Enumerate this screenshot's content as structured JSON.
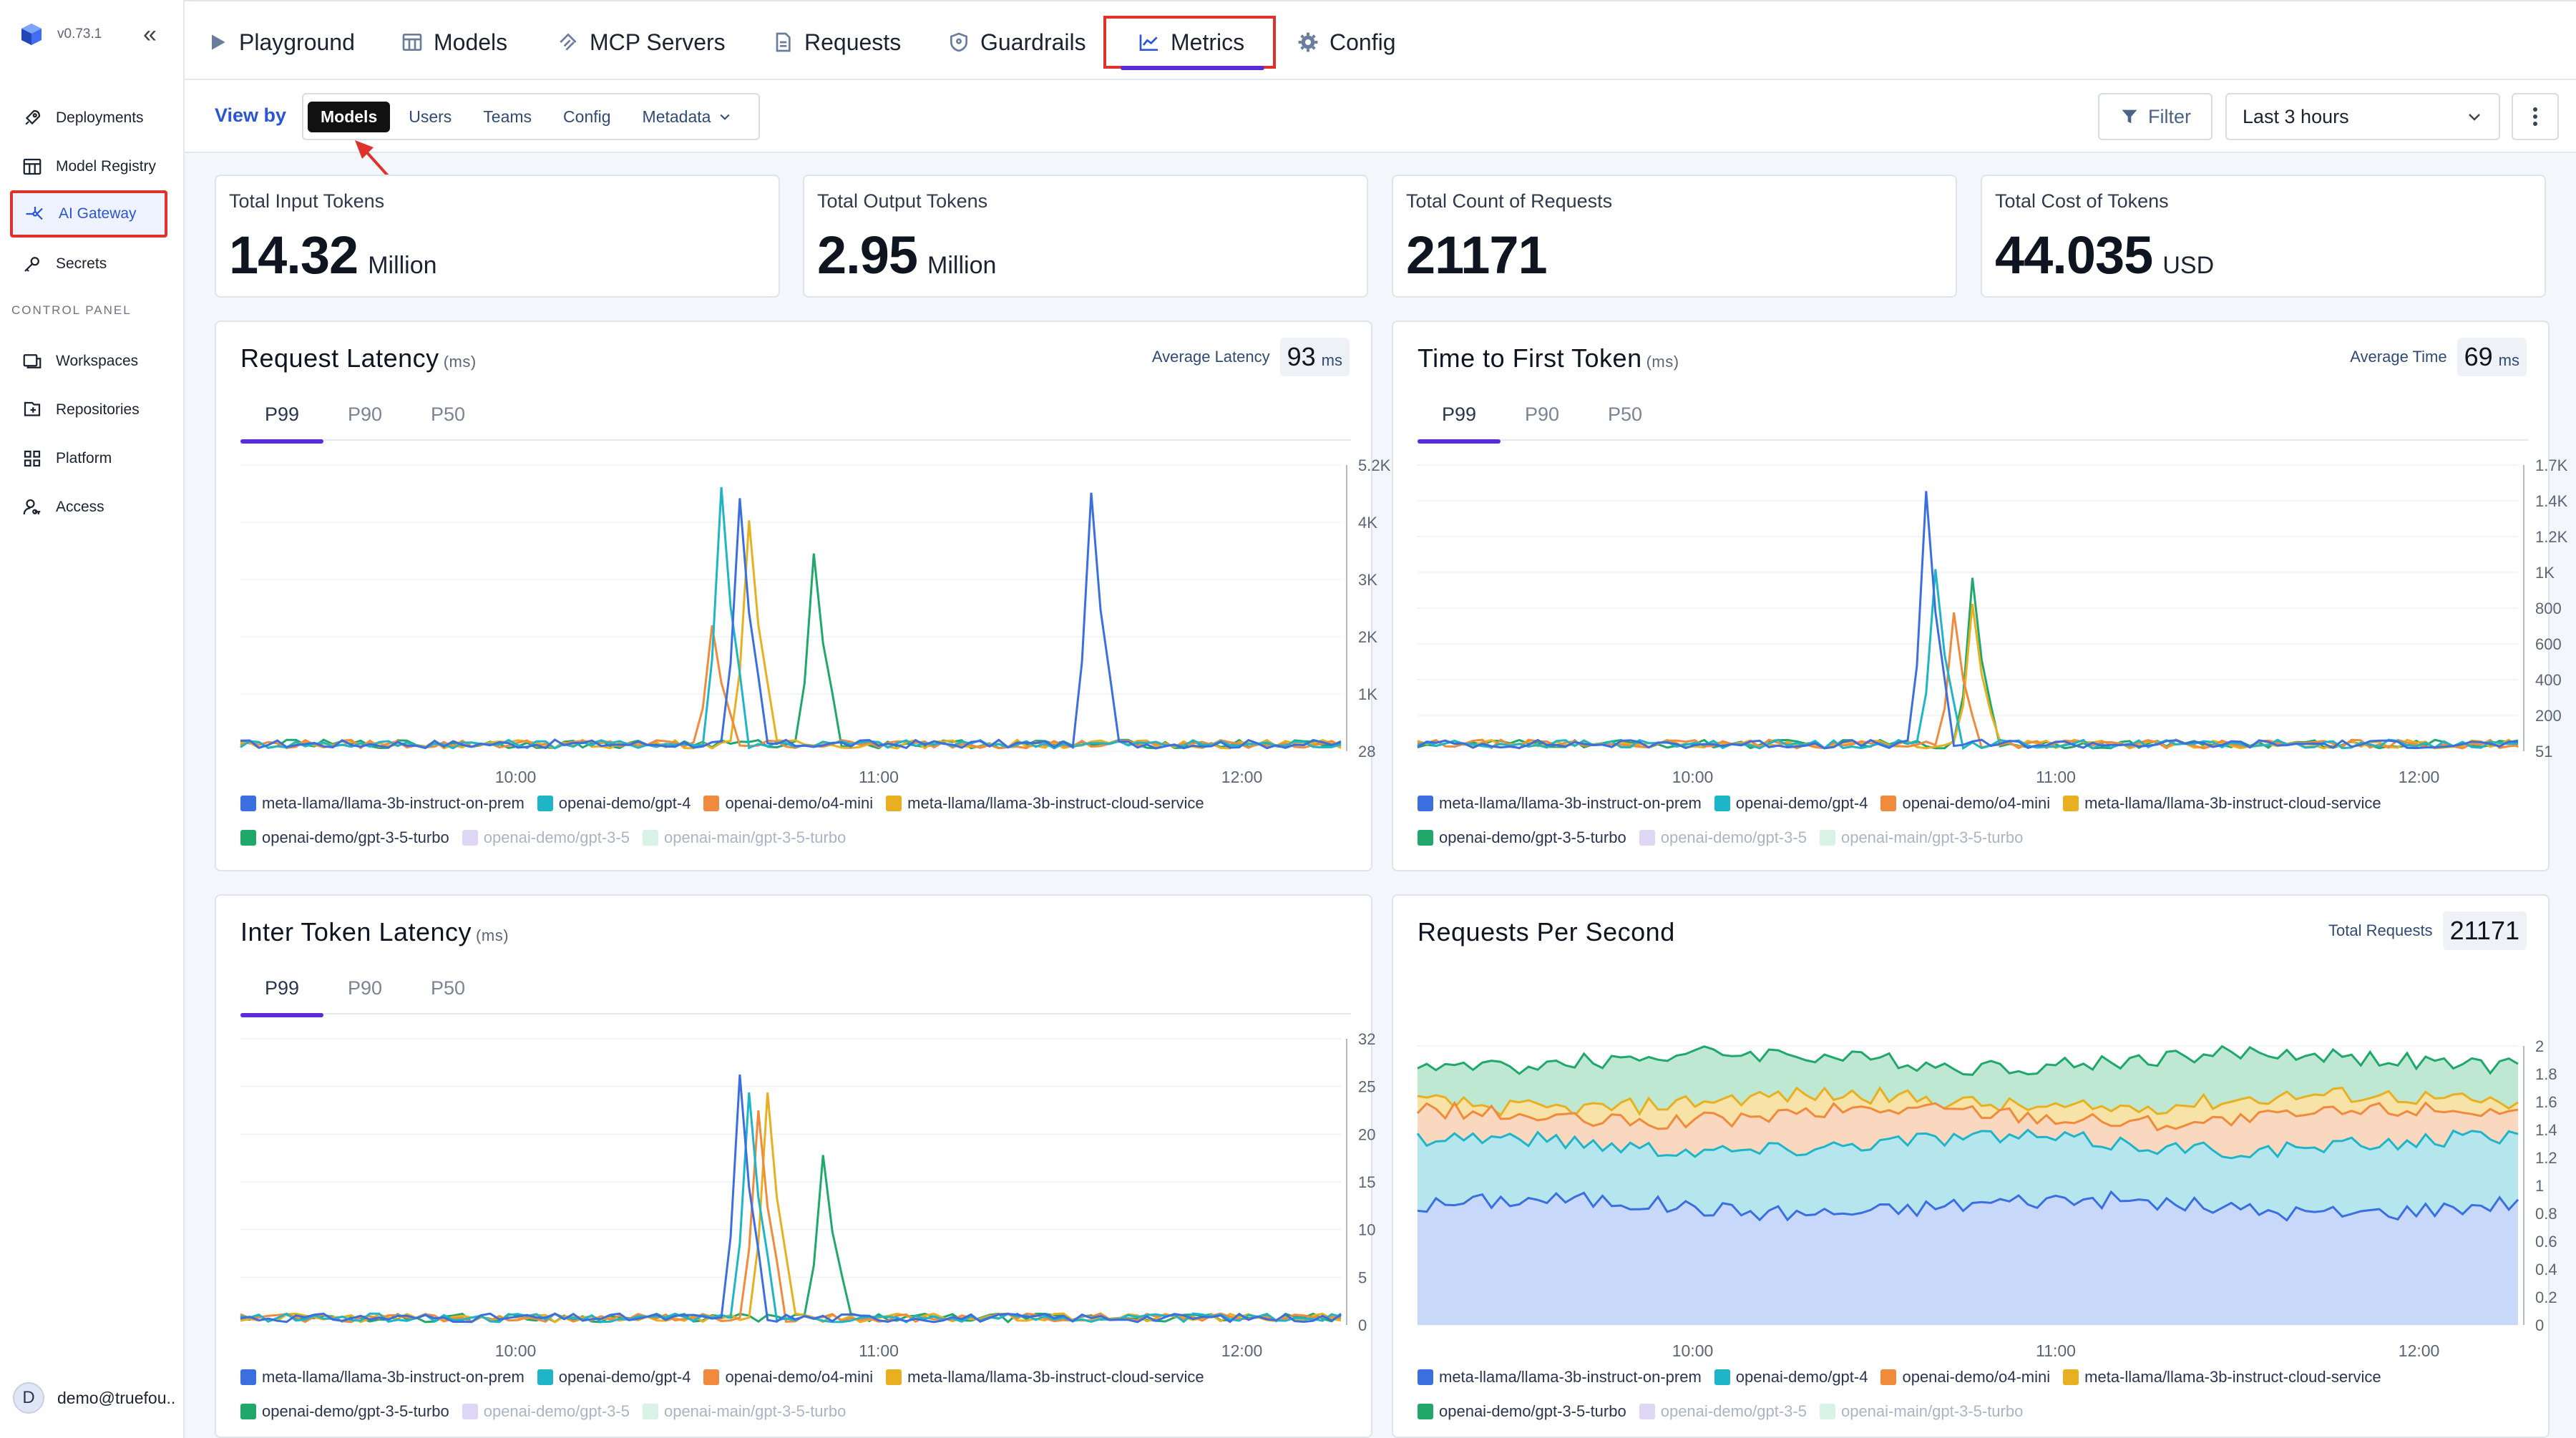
{
  "app": {
    "version": "v0.73.1"
  },
  "sidebar": {
    "items": [
      {
        "label": "Deployments",
        "icon": "rocket-icon"
      },
      {
        "label": "Model Registry",
        "icon": "table-icon"
      },
      {
        "label": "AI Gateway",
        "icon": "gateway-icon",
        "active": true
      },
      {
        "label": "Secrets",
        "icon": "key-icon"
      }
    ],
    "section_label": "CONTROL PANEL",
    "control_items": [
      {
        "label": "Workspaces",
        "icon": "workspace-icon"
      },
      {
        "label": "Repositories",
        "icon": "repository-icon"
      },
      {
        "label": "Platform",
        "icon": "grid-icon"
      },
      {
        "label": "Access",
        "icon": "user-key-icon"
      }
    ],
    "user": {
      "initial": "D",
      "email": "demo@truefou.."
    }
  },
  "topnav": {
    "tabs": [
      {
        "label": "Playground",
        "icon": "play-icon"
      },
      {
        "label": "Models",
        "icon": "table-icon"
      },
      {
        "label": "MCP Servers",
        "icon": "mcp-icon"
      },
      {
        "label": "Requests",
        "icon": "document-icon"
      },
      {
        "label": "Guardrails",
        "icon": "shield-icon"
      },
      {
        "label": "Metrics",
        "icon": "chart-line-icon",
        "active": true
      },
      {
        "label": "Config",
        "icon": "gear-icon"
      }
    ]
  },
  "subbar": {
    "view_by": "View by",
    "options": [
      "Models",
      "Users",
      "Teams",
      "Config",
      "Metadata"
    ],
    "selected": "Models",
    "filter": "Filter",
    "time_range": "Last 3 hours"
  },
  "stats": [
    {
      "label": "Total Input Tokens",
      "value": "14.32",
      "unit": "Million"
    },
    {
      "label": "Total Output Tokens",
      "value": "2.95",
      "unit": "Million"
    },
    {
      "label": "Total Count of Requests",
      "value": "21171",
      "unit": ""
    },
    {
      "label": "Total Cost of Tokens",
      "value": "44.035",
      "unit": "USD"
    }
  ],
  "cards": {
    "request_latency": {
      "title": "Request Latency",
      "unit": "(ms)",
      "avg_label": "Average Latency",
      "avg_value": "93",
      "avg_unit": "ms",
      "tabs": [
        "P99",
        "P90",
        "P50"
      ]
    },
    "ttft": {
      "title": "Time to First Token",
      "unit": "(ms)",
      "avg_label": "Average Time",
      "avg_value": "69",
      "avg_unit": "ms",
      "tabs": [
        "P99",
        "P90",
        "P50"
      ]
    },
    "itl": {
      "title": "Inter Token Latency",
      "unit": "(ms)",
      "tabs": [
        "P99",
        "P90",
        "P50"
      ]
    },
    "rps": {
      "title": "Requests Per Second",
      "avg_label": "Total Requests",
      "avg_value": "21171"
    }
  },
  "legend": [
    {
      "name": "meta-llama/llama-3b-instruct-on-prem",
      "color": "#3b6fe0",
      "dim": false
    },
    {
      "name": "openai-demo/gpt-4",
      "color": "#1fb5c9",
      "dim": false
    },
    {
      "name": "openai-demo/o4-mini",
      "color": "#f08a3c",
      "dim": false
    },
    {
      "name": "meta-llama/llama-3b-instruct-cloud-service",
      "color": "#e8b020",
      "dim": false
    },
    {
      "name": "openai-demo/gpt-3-5-turbo",
      "color": "#1fa86a",
      "dim": false
    },
    {
      "name": "openai-demo/gpt-3-5",
      "color": "#ddd6f5",
      "dim": true
    },
    {
      "name": "openai-main/gpt-3-5-turbo",
      "color": "#d9f2e6",
      "dim": true
    }
  ],
  "chart_data": [
    {
      "id": "request_latency",
      "type": "line",
      "title": "Request Latency",
      "x_ticks": [
        "10:00",
        "11:00",
        "12:00"
      ],
      "y_ticks": [
        "28",
        "1K",
        "2K",
        "3K",
        "4K",
        "5.2K"
      ],
      "ylim": [
        28,
        5200
      ],
      "spikes": [
        {
          "series": 0,
          "at": 0.45,
          "value": 4600
        },
        {
          "series": 1,
          "at": 0.44,
          "value": 4800
        },
        {
          "series": 2,
          "at": 0.43,
          "value": 2300
        },
        {
          "series": 3,
          "at": 0.46,
          "value": 4200
        },
        {
          "series": 4,
          "at": 0.52,
          "value": 3600
        },
        {
          "series": 0,
          "at": 0.77,
          "value": 4700
        }
      ]
    },
    {
      "id": "ttft",
      "type": "line",
      "title": "Time to First Token",
      "x_ticks": [
        "10:00",
        "11:00",
        "12:00"
      ],
      "y_ticks": [
        "51",
        "200",
        "400",
        "600",
        "800",
        "1K",
        "1.2K",
        "1.4K",
        "1.7K"
      ],
      "ylim": [
        51,
        1700
      ],
      "spikes": [
        {
          "series": 0,
          "at": 0.46,
          "value": 1550
        },
        {
          "series": 1,
          "at": 0.47,
          "value": 1100
        },
        {
          "series": 2,
          "at": 0.49,
          "value": 850
        },
        {
          "series": 3,
          "at": 0.5,
          "value": 900
        },
        {
          "series": 4,
          "at": 0.5,
          "value": 1050
        }
      ]
    },
    {
      "id": "itl",
      "type": "line",
      "title": "Inter Token Latency",
      "x_ticks": [
        "10:00",
        "11:00",
        "12:00"
      ],
      "y_ticks": [
        "0",
        "5",
        "10",
        "15",
        "20",
        "25",
        "32"
      ],
      "ylim": [
        0,
        32
      ],
      "spikes": [
        {
          "series": 0,
          "at": 0.45,
          "value": 28
        },
        {
          "series": 1,
          "at": 0.46,
          "value": 26
        },
        {
          "series": 2,
          "at": 0.47,
          "value": 24
        },
        {
          "series": 3,
          "at": 0.48,
          "value": 26
        },
        {
          "series": 4,
          "at": 0.53,
          "value": 19
        }
      ]
    },
    {
      "id": "rps",
      "type": "area",
      "title": "Requests Per Second",
      "x_ticks": [
        "10:00",
        "11:00",
        "12:00"
      ],
      "y_ticks": [
        "0",
        "0.2",
        "0.4",
        "0.6",
        "0.8",
        "1",
        "1.2",
        "1.4",
        "1.6",
        "1.8",
        "2"
      ],
      "ylim": [
        0,
        2
      ],
      "stack_levels": [
        0.85,
        1.3,
        1.5,
        1.6,
        1.9
      ]
    }
  ]
}
